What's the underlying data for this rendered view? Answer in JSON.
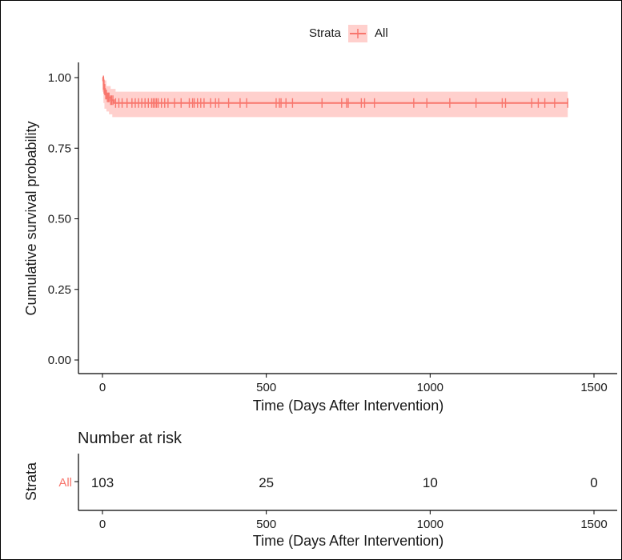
{
  "chart_data": [
    {
      "type": "line",
      "subtype": "kaplan-meier",
      "legend": {
        "title": "Strata",
        "entries": [
          "All"
        ],
        "placement": "top"
      },
      "ylabel": "Cumulative survival probability",
      "xlabel": "Time (Days After Intervention)",
      "xlim": [
        0,
        1500
      ],
      "ylim": [
        0,
        1
      ],
      "xticks": [
        0,
        500,
        1000,
        1500
      ],
      "yticks": [
        0.0,
        0.25,
        0.5,
        0.75,
        1.0
      ],
      "xtick_labels": [
        "0",
        "500",
        "1000",
        "1500"
      ],
      "ytick_labels": [
        "0.00",
        "0.25",
        "0.50",
        "0.75",
        "1.00"
      ],
      "grid": false,
      "series": [
        {
          "name": "All",
          "color": "#F8766D",
          "ci_color": "#FFD0CD",
          "steps": [
            [
              0,
              1.0
            ],
            [
              2,
              0.99
            ],
            [
              4,
              0.96
            ],
            [
              8,
              0.94
            ],
            [
              15,
              0.93
            ],
            [
              25,
              0.92
            ],
            [
              35,
              0.91
            ],
            [
              1420,
              0.91
            ]
          ],
          "ci_lower": [
            [
              0,
              1.0
            ],
            [
              3,
              0.95
            ],
            [
              6,
              0.91
            ],
            [
              12,
              0.89
            ],
            [
              20,
              0.88
            ],
            [
              30,
              0.87
            ],
            [
              40,
              0.86
            ],
            [
              1420,
              0.86
            ]
          ],
          "ci_upper": [
            [
              0,
              1.0
            ],
            [
              3,
              1.0
            ],
            [
              6,
              0.99
            ],
            [
              12,
              0.97
            ],
            [
              25,
              0.96
            ],
            [
              40,
              0.95
            ],
            [
              1420,
              0.97
            ]
          ],
          "censor_times": [
            3,
            5,
            7,
            10,
            12,
            15,
            18,
            20,
            25,
            28,
            32,
            40,
            50,
            60,
            75,
            90,
            100,
            110,
            120,
            130,
            140,
            150,
            155,
            160,
            165,
            170,
            180,
            190,
            200,
            220,
            240,
            265,
            275,
            280,
            290,
            300,
            310,
            330,
            345,
            355,
            385,
            420,
            440,
            530,
            540,
            545,
            560,
            580,
            670,
            730,
            745,
            750,
            790,
            800,
            830,
            950,
            990,
            1060,
            1140,
            1220,
            1230,
            1310,
            1330,
            1350,
            1380,
            1420
          ]
        }
      ]
    },
    {
      "type": "table",
      "title": "Number at risk",
      "ylabel": "Strata",
      "xlabel": "Time (Days After Intervention)",
      "xlim": [
        0,
        1500
      ],
      "xticks": [
        0,
        500,
        1000,
        1500
      ],
      "xtick_labels": [
        "0",
        "500",
        "1000",
        "1500"
      ],
      "rows": [
        {
          "strata": "All",
          "color": "#F8766D",
          "times": [
            0,
            500,
            1000,
            1500
          ],
          "values": [
            "103",
            "25",
            "10",
            "0"
          ]
        }
      ]
    }
  ]
}
